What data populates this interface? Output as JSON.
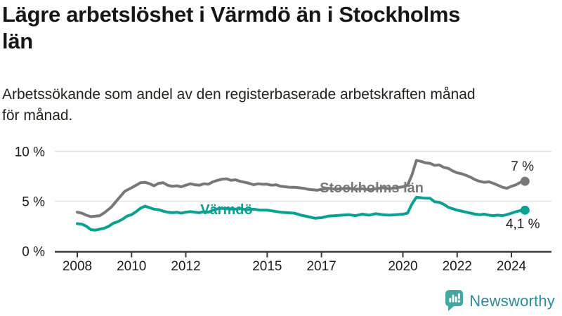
{
  "header": {
    "title": "Lägre arbetslöshet i Värmdö än i Stockholms\nlän",
    "subtitle": "Arbetssökande som andel av den registerbaserade arbetskraften månad\nför månad."
  },
  "footer": {
    "brand": "Newsworthy"
  },
  "colors": {
    "stockholm": "#77787a",
    "varmdo": "#0aa192",
    "axis": "#3a3a3a",
    "grid": "#e0e0e0",
    "label_text": "#1a1a1a",
    "brand_icon": "#43a7a3",
    "brand_text": "#2e8a96"
  },
  "chart_data": {
    "type": "line",
    "title": "Lägre arbetslöshet i Värmdö än i Stockholms län",
    "subtitle": "Arbetssökande som andel av den registerbaserade arbetskraften månad för månad.",
    "xlabel": "",
    "ylabel": "",
    "x_unit": "year (monthly observations)",
    "value_unit": "%",
    "ylim": [
      0,
      10
    ],
    "xlim": [
      2007.2,
      2025.4
    ],
    "grid": "horizontal-only",
    "legend_position": "inline-labels",
    "y_ticks": [
      {
        "v": 0,
        "label": "0 %"
      },
      {
        "v": 5,
        "label": "5 %"
      },
      {
        "v": 10,
        "label": "10 %"
      }
    ],
    "x_ticks": [
      {
        "v": 2008,
        "label": "2008"
      },
      {
        "v": 2010,
        "label": "2010"
      },
      {
        "v": 2012,
        "label": "2012"
      },
      {
        "v": 2015,
        "label": "2015"
      },
      {
        "v": 2017,
        "label": "2017"
      },
      {
        "v": 2020,
        "label": "2020"
      },
      {
        "v": 2022,
        "label": "2022"
      },
      {
        "v": 2024,
        "label": "2024"
      }
    ],
    "series": [
      {
        "id": "stockholm",
        "name": "Stockholms län",
        "color": "#77787a",
        "name_label": {
          "x": 2018.85,
          "y": 5.9
        },
        "end_label": {
          "text": "7 %",
          "x": 2024.83,
          "y": 8.07
        },
        "end_value": 7.0,
        "points": [
          [
            2008.0,
            3.9
          ],
          [
            2008.17,
            3.8
          ],
          [
            2008.33,
            3.6
          ],
          [
            2008.5,
            3.45
          ],
          [
            2008.67,
            3.5
          ],
          [
            2008.83,
            3.55
          ],
          [
            2009.0,
            3.85
          ],
          [
            2009.25,
            4.4
          ],
          [
            2009.5,
            5.2
          ],
          [
            2009.75,
            6.0
          ],
          [
            2010.0,
            6.35
          ],
          [
            2010.17,
            6.6
          ],
          [
            2010.33,
            6.85
          ],
          [
            2010.5,
            6.9
          ],
          [
            2010.67,
            6.75
          ],
          [
            2010.83,
            6.55
          ],
          [
            2011.0,
            6.8
          ],
          [
            2011.17,
            6.85
          ],
          [
            2011.33,
            6.6
          ],
          [
            2011.5,
            6.5
          ],
          [
            2011.67,
            6.55
          ],
          [
            2011.83,
            6.45
          ],
          [
            2012.0,
            6.6
          ],
          [
            2012.17,
            6.75
          ],
          [
            2012.33,
            6.65
          ],
          [
            2012.5,
            6.6
          ],
          [
            2012.67,
            6.75
          ],
          [
            2012.83,
            6.7
          ],
          [
            2013.0,
            6.95
          ],
          [
            2013.17,
            7.1
          ],
          [
            2013.33,
            7.2
          ],
          [
            2013.5,
            7.25
          ],
          [
            2013.67,
            7.1
          ],
          [
            2013.83,
            7.15
          ],
          [
            2014.0,
            7.0
          ],
          [
            2014.17,
            6.9
          ],
          [
            2014.33,
            6.8
          ],
          [
            2014.5,
            6.65
          ],
          [
            2014.67,
            6.75
          ],
          [
            2014.83,
            6.7
          ],
          [
            2015.0,
            6.7
          ],
          [
            2015.17,
            6.6
          ],
          [
            2015.33,
            6.65
          ],
          [
            2015.5,
            6.5
          ],
          [
            2015.67,
            6.45
          ],
          [
            2015.83,
            6.4
          ],
          [
            2016.0,
            6.4
          ],
          [
            2016.17,
            6.35
          ],
          [
            2016.33,
            6.3
          ],
          [
            2016.5,
            6.2
          ],
          [
            2016.67,
            6.15
          ],
          [
            2016.83,
            6.1
          ],
          [
            2017.0,
            6.2
          ],
          [
            2017.25,
            6.3
          ],
          [
            2017.5,
            6.2
          ],
          [
            2017.75,
            6.25
          ],
          [
            2018.0,
            6.3
          ],
          [
            2018.25,
            6.2
          ],
          [
            2018.5,
            6.25
          ],
          [
            2018.75,
            6.15
          ],
          [
            2019.0,
            6.25
          ],
          [
            2019.25,
            6.35
          ],
          [
            2019.5,
            6.25
          ],
          [
            2019.75,
            6.35
          ],
          [
            2020.0,
            6.45
          ],
          [
            2020.17,
            6.6
          ],
          [
            2020.33,
            7.6
          ],
          [
            2020.5,
            9.1
          ],
          [
            2020.67,
            9.0
          ],
          [
            2020.83,
            8.85
          ],
          [
            2021.0,
            8.8
          ],
          [
            2021.17,
            8.6
          ],
          [
            2021.33,
            8.65
          ],
          [
            2021.5,
            8.4
          ],
          [
            2021.67,
            8.3
          ],
          [
            2021.83,
            8.05
          ],
          [
            2022.0,
            7.85
          ],
          [
            2022.17,
            7.75
          ],
          [
            2022.33,
            7.6
          ],
          [
            2022.5,
            7.4
          ],
          [
            2022.67,
            7.15
          ],
          [
            2022.83,
            7.0
          ],
          [
            2023.0,
            6.9
          ],
          [
            2023.17,
            6.95
          ],
          [
            2023.33,
            6.8
          ],
          [
            2023.5,
            6.6
          ],
          [
            2023.67,
            6.4
          ],
          [
            2023.83,
            6.3
          ],
          [
            2024.0,
            6.5
          ],
          [
            2024.17,
            6.65
          ],
          [
            2024.33,
            6.9
          ],
          [
            2024.5,
            7.0
          ]
        ]
      },
      {
        "id": "varmdo",
        "name": "Värmdö",
        "color": "#0aa192",
        "name_label": {
          "x": 2013.5,
          "y": 3.7
        },
        "end_label": {
          "text": "4,1 %",
          "x": 2025.05,
          "y": 2.29
        },
        "end_value": 4.1,
        "points": [
          [
            2008.0,
            2.75
          ],
          [
            2008.17,
            2.7
          ],
          [
            2008.33,
            2.5
          ],
          [
            2008.5,
            2.15
          ],
          [
            2008.67,
            2.1
          ],
          [
            2008.83,
            2.2
          ],
          [
            2009.0,
            2.3
          ],
          [
            2009.17,
            2.5
          ],
          [
            2009.33,
            2.8
          ],
          [
            2009.5,
            2.95
          ],
          [
            2009.67,
            3.2
          ],
          [
            2009.83,
            3.5
          ],
          [
            2010.0,
            3.65
          ],
          [
            2010.17,
            3.95
          ],
          [
            2010.33,
            4.3
          ],
          [
            2010.5,
            4.5
          ],
          [
            2010.67,
            4.35
          ],
          [
            2010.83,
            4.2
          ],
          [
            2011.0,
            4.15
          ],
          [
            2011.17,
            4.0
          ],
          [
            2011.33,
            3.9
          ],
          [
            2011.5,
            3.85
          ],
          [
            2011.67,
            3.9
          ],
          [
            2011.83,
            3.8
          ],
          [
            2012.0,
            3.9
          ],
          [
            2012.17,
            3.95
          ],
          [
            2012.33,
            3.9
          ],
          [
            2012.5,
            3.85
          ],
          [
            2012.67,
            3.95
          ],
          [
            2012.83,
            3.9
          ],
          [
            2013.0,
            4.1
          ],
          [
            2013.25,
            4.3
          ],
          [
            2013.5,
            4.25
          ],
          [
            2013.75,
            4.2
          ],
          [
            2014.0,
            4.25
          ],
          [
            2014.25,
            4.15
          ],
          [
            2014.5,
            4.2
          ],
          [
            2014.75,
            4.1
          ],
          [
            2015.0,
            4.1
          ],
          [
            2015.25,
            4.0
          ],
          [
            2015.5,
            3.9
          ],
          [
            2015.75,
            3.85
          ],
          [
            2016.0,
            3.8
          ],
          [
            2016.25,
            3.6
          ],
          [
            2016.5,
            3.45
          ],
          [
            2016.75,
            3.3
          ],
          [
            2017.0,
            3.35
          ],
          [
            2017.25,
            3.5
          ],
          [
            2017.5,
            3.55
          ],
          [
            2017.75,
            3.6
          ],
          [
            2018.0,
            3.65
          ],
          [
            2018.25,
            3.55
          ],
          [
            2018.5,
            3.7
          ],
          [
            2018.75,
            3.6
          ],
          [
            2019.0,
            3.75
          ],
          [
            2019.25,
            3.65
          ],
          [
            2019.5,
            3.6
          ],
          [
            2019.75,
            3.65
          ],
          [
            2020.0,
            3.7
          ],
          [
            2020.17,
            3.8
          ],
          [
            2020.33,
            4.7
          ],
          [
            2020.5,
            5.4
          ],
          [
            2020.67,
            5.35
          ],
          [
            2020.83,
            5.3
          ],
          [
            2021.0,
            5.3
          ],
          [
            2021.17,
            4.95
          ],
          [
            2021.33,
            4.9
          ],
          [
            2021.5,
            4.7
          ],
          [
            2021.67,
            4.4
          ],
          [
            2021.83,
            4.25
          ],
          [
            2022.0,
            4.1
          ],
          [
            2022.17,
            4.0
          ],
          [
            2022.33,
            3.9
          ],
          [
            2022.5,
            3.8
          ],
          [
            2022.67,
            3.7
          ],
          [
            2022.83,
            3.65
          ],
          [
            2023.0,
            3.7
          ],
          [
            2023.17,
            3.6
          ],
          [
            2023.33,
            3.55
          ],
          [
            2023.5,
            3.6
          ],
          [
            2023.67,
            3.55
          ],
          [
            2023.83,
            3.65
          ],
          [
            2024.0,
            3.8
          ],
          [
            2024.17,
            3.95
          ],
          [
            2024.33,
            4.05
          ],
          [
            2024.5,
            4.1
          ]
        ]
      }
    ]
  }
}
